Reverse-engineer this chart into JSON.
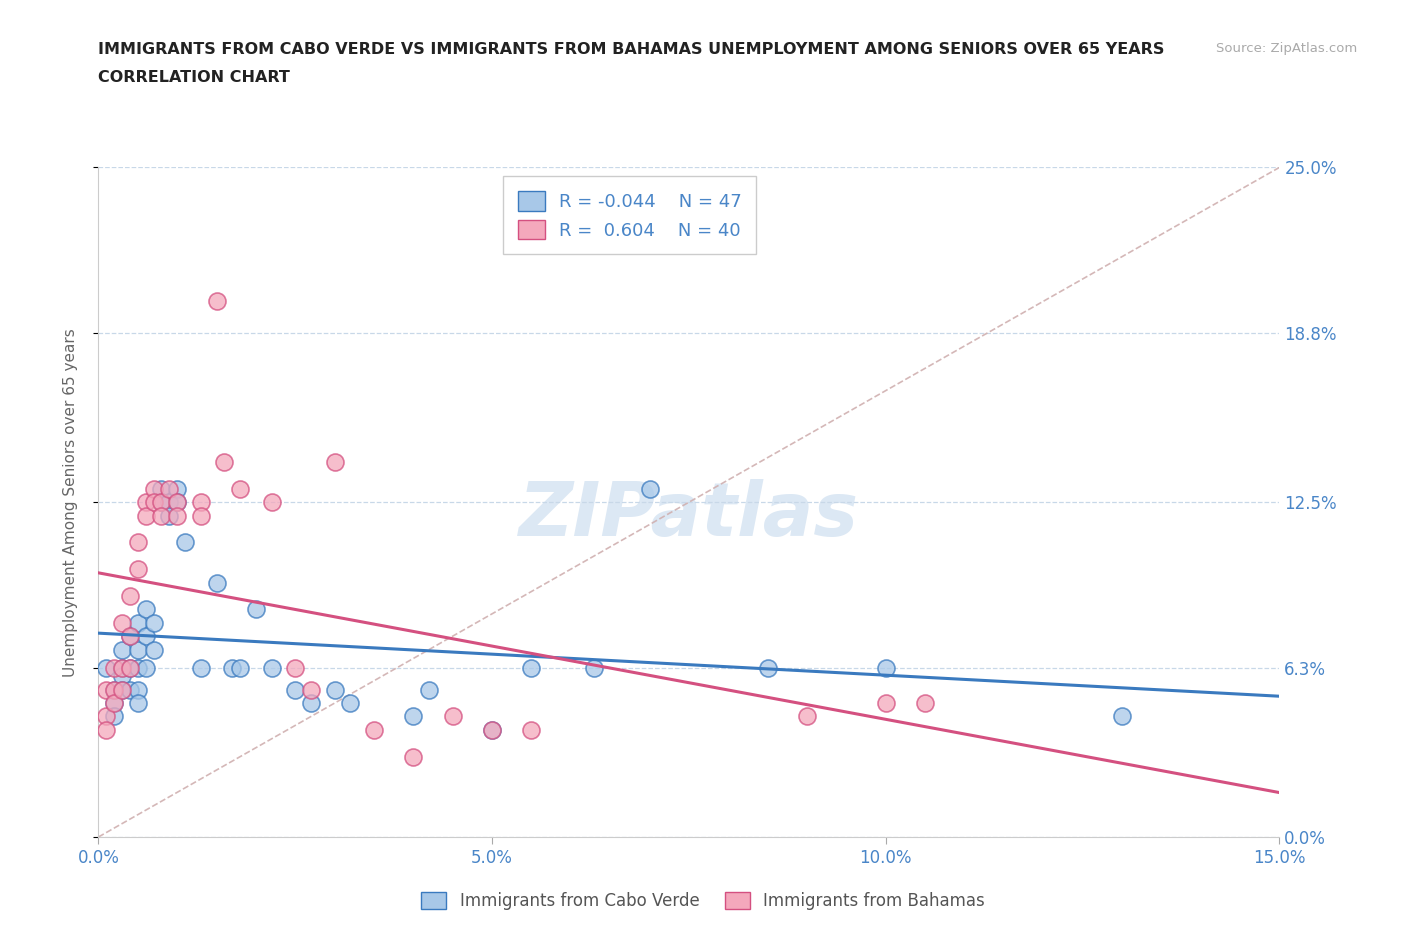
{
  "title_line1": "IMMIGRANTS FROM CABO VERDE VS IMMIGRANTS FROM BAHAMAS UNEMPLOYMENT AMONG SENIORS OVER 65 YEARS",
  "title_line2": "CORRELATION CHART",
  "source": "Source: ZipAtlas.com",
  "ylabel_label": "Unemployment Among Seniors over 65 years",
  "legend_label1": "Immigrants from Cabo Verde",
  "legend_label2": "Immigrants from Bahamas",
  "R1": -0.044,
  "N1": 47,
  "R2": 0.604,
  "N2": 40,
  "xmin": 0.0,
  "xmax": 0.15,
  "ymin": 0.0,
  "ymax": 0.25,
  "yticks": [
    0.0,
    0.063,
    0.125,
    0.188,
    0.25
  ],
  "ytick_labels": [
    "0.0%",
    "6.3%",
    "12.5%",
    "18.8%",
    "25.0%"
  ],
  "xticks": [
    0.0,
    0.05,
    0.1,
    0.15
  ],
  "xtick_labels": [
    "0.0%",
    "5.0%",
    "10.0%",
    "15.0%"
  ],
  "color_blue": "#a8c8e8",
  "color_pink": "#f4a8bc",
  "line_blue": "#3a7abf",
  "line_pink": "#d45080",
  "grid_color": "#c8d8e8",
  "diag_color": "#d0b0b0",
  "background": "#ffffff",
  "title_color": "#222222",
  "axis_label_color": "#4a86c8",
  "watermark_color": "#dce8f4",
  "cabo_verde_points": [
    [
      0.001,
      0.063
    ],
    [
      0.002,
      0.055
    ],
    [
      0.002,
      0.05
    ],
    [
      0.002,
      0.045
    ],
    [
      0.003,
      0.07
    ],
    [
      0.003,
      0.063
    ],
    [
      0.003,
      0.06
    ],
    [
      0.003,
      0.055
    ],
    [
      0.004,
      0.075
    ],
    [
      0.004,
      0.063
    ],
    [
      0.004,
      0.055
    ],
    [
      0.005,
      0.08
    ],
    [
      0.005,
      0.07
    ],
    [
      0.005,
      0.063
    ],
    [
      0.005,
      0.055
    ],
    [
      0.005,
      0.05
    ],
    [
      0.006,
      0.085
    ],
    [
      0.006,
      0.075
    ],
    [
      0.006,
      0.063
    ],
    [
      0.007,
      0.08
    ],
    [
      0.007,
      0.07
    ],
    [
      0.008,
      0.13
    ],
    [
      0.008,
      0.125
    ],
    [
      0.009,
      0.125
    ],
    [
      0.009,
      0.12
    ],
    [
      0.01,
      0.13
    ],
    [
      0.01,
      0.125
    ],
    [
      0.011,
      0.11
    ],
    [
      0.013,
      0.063
    ],
    [
      0.015,
      0.095
    ],
    [
      0.017,
      0.063
    ],
    [
      0.018,
      0.063
    ],
    [
      0.02,
      0.085
    ],
    [
      0.022,
      0.063
    ],
    [
      0.025,
      0.055
    ],
    [
      0.027,
      0.05
    ],
    [
      0.03,
      0.055
    ],
    [
      0.032,
      0.05
    ],
    [
      0.04,
      0.045
    ],
    [
      0.042,
      0.055
    ],
    [
      0.05,
      0.04
    ],
    [
      0.055,
      0.063
    ],
    [
      0.063,
      0.063
    ],
    [
      0.07,
      0.13
    ],
    [
      0.085,
      0.063
    ],
    [
      0.1,
      0.063
    ],
    [
      0.13,
      0.045
    ]
  ],
  "bahamas_points": [
    [
      0.001,
      0.055
    ],
    [
      0.001,
      0.045
    ],
    [
      0.001,
      0.04
    ],
    [
      0.002,
      0.063
    ],
    [
      0.002,
      0.055
    ],
    [
      0.002,
      0.05
    ],
    [
      0.003,
      0.08
    ],
    [
      0.003,
      0.063
    ],
    [
      0.003,
      0.055
    ],
    [
      0.004,
      0.09
    ],
    [
      0.004,
      0.075
    ],
    [
      0.004,
      0.063
    ],
    [
      0.005,
      0.11
    ],
    [
      0.005,
      0.1
    ],
    [
      0.006,
      0.125
    ],
    [
      0.006,
      0.12
    ],
    [
      0.007,
      0.13
    ],
    [
      0.007,
      0.125
    ],
    [
      0.008,
      0.125
    ],
    [
      0.008,
      0.12
    ],
    [
      0.009,
      0.13
    ],
    [
      0.01,
      0.125
    ],
    [
      0.01,
      0.12
    ],
    [
      0.013,
      0.125
    ],
    [
      0.013,
      0.12
    ],
    [
      0.015,
      0.2
    ],
    [
      0.016,
      0.14
    ],
    [
      0.018,
      0.13
    ],
    [
      0.022,
      0.125
    ],
    [
      0.025,
      0.063
    ],
    [
      0.027,
      0.055
    ],
    [
      0.03,
      0.14
    ],
    [
      0.035,
      0.04
    ],
    [
      0.04,
      0.03
    ],
    [
      0.045,
      0.045
    ],
    [
      0.05,
      0.04
    ],
    [
      0.055,
      0.04
    ],
    [
      0.09,
      0.045
    ],
    [
      0.1,
      0.05
    ],
    [
      0.105,
      0.05
    ]
  ]
}
